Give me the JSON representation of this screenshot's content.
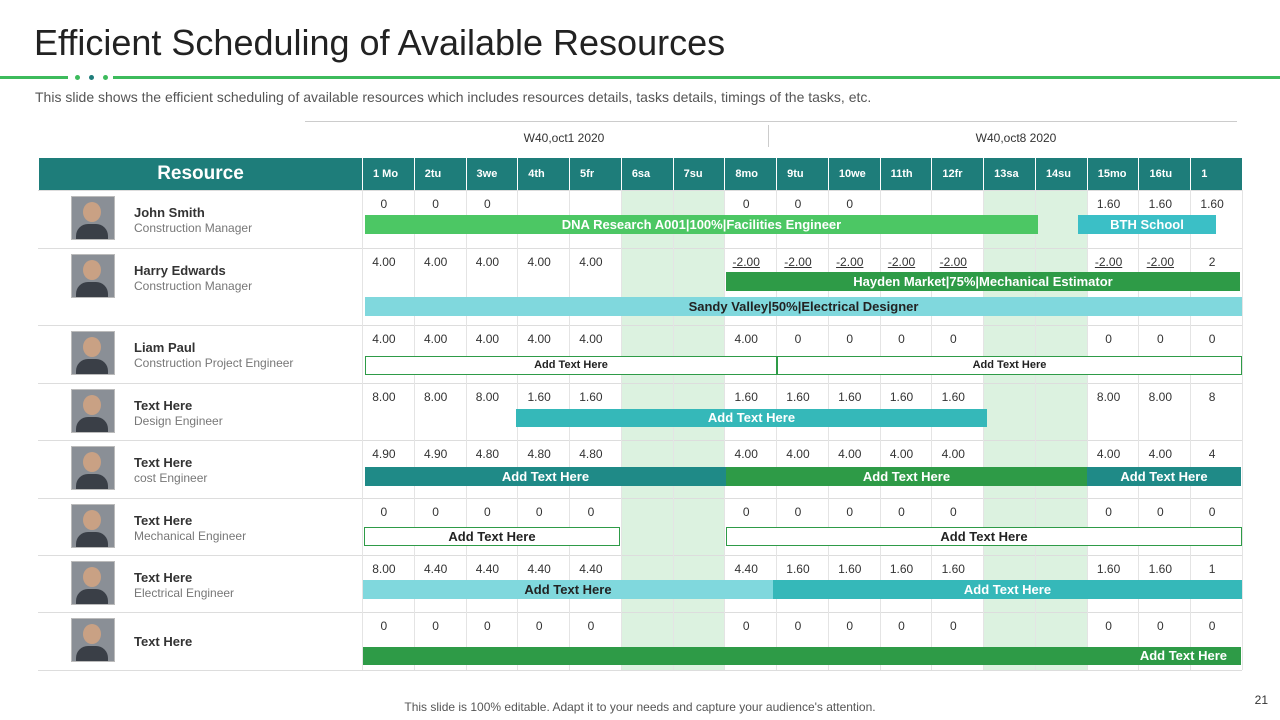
{
  "header": {
    "title": "Efficient Scheduling of Available Resources",
    "subtitle": "This slide shows the efficient scheduling of available resources which includes resources details, tasks details, timings of the tasks, etc."
  },
  "weeks": [
    "W40,oct1 2020",
    "W40,oct8 2020"
  ],
  "table": {
    "resource_header": "Resource",
    "days": [
      "1 Mo",
      "2tu",
      "3we",
      "4th",
      "5fr",
      "6sa",
      "7su",
      "8mo",
      "9tu",
      "10we",
      "11th",
      "12fr",
      "13sa",
      "14su",
      "15mo",
      "16tu",
      "1"
    ],
    "rows": [
      {
        "name": "John Smith",
        "role": "Construction Manager",
        "values": [
          "0",
          "0",
          "0",
          null,
          null,
          null,
          null,
          "0",
          "0",
          "0",
          null,
          null,
          null,
          null,
          "1.60",
          "1.60",
          "1.60"
        ],
        "bars": [
          {
            "label": "DNA  Research A001|100%|Facilities  Engineer"
          },
          {
            "label": "BTH  School"
          }
        ]
      },
      {
        "name": "Harry Edwards",
        "role": "Construction Manager",
        "values": [
          "4.00",
          "4.00",
          "4.00",
          "4.00",
          "4.00",
          null,
          null,
          "-2.00",
          "-2.00",
          "-2.00",
          "-2.00",
          "-2.00",
          null,
          null,
          "-2.00",
          "-2.00",
          "2"
        ],
        "bars": [
          {
            "label": "Hayden Market|75%|Mechanical Estimator"
          },
          {
            "label": "Sandy Valley|50%|Electrical  Designer"
          }
        ]
      },
      {
        "name": "Liam Paul",
        "role": "Construction Project Engineer",
        "values": [
          "4.00",
          "4.00",
          "4.00",
          "4.00",
          "4.00",
          null,
          null,
          "4.00",
          "0",
          "0",
          "0",
          "0",
          null,
          null,
          "0",
          "0",
          "0"
        ],
        "bars": [
          {
            "label": "Add Text Here"
          },
          {
            "label": "Add Text Here"
          }
        ]
      },
      {
        "name": "Text Here",
        "role": "Design Engineer",
        "values": [
          "8.00",
          "8.00",
          "8.00",
          "1.60",
          "1.60",
          null,
          null,
          "1.60",
          "1.60",
          "1.60",
          "1.60",
          "1.60",
          null,
          null,
          "8.00",
          "8.00",
          "8"
        ],
        "bars": [
          {
            "label": "Add Text Here"
          }
        ]
      },
      {
        "name": "Text Here",
        "role": "cost Engineer",
        "values": [
          "4.90",
          "4.90",
          "4.80",
          "4.80",
          "4.80",
          null,
          null,
          "4.00",
          "4.00",
          "4.00",
          "4.00",
          "4.00",
          null,
          null,
          "4.00",
          "4.00",
          "4"
        ],
        "bars": [
          {
            "label": "Add Text Here"
          },
          {
            "label": "Add Text Here"
          },
          {
            "label": "Add Text Here"
          }
        ]
      },
      {
        "name": "Text Here",
        "role": "Mechanical Engineer",
        "values": [
          "0",
          "0",
          "0",
          "0",
          "0",
          null,
          null,
          "0",
          "0",
          "0",
          "0",
          "0",
          null,
          null,
          "0",
          "0",
          "0"
        ],
        "bars": [
          {
            "label": "Add  Text Here"
          },
          {
            "label": "Add Text Here"
          }
        ]
      },
      {
        "name": "Text Here",
        "role": "Electrical Engineer",
        "values": [
          "8.00",
          "4.40",
          "4.40",
          "4.40",
          "4.40",
          null,
          null,
          "4.40",
          "1.60",
          "1.60",
          "1.60",
          "1.60",
          null,
          null,
          "1.60",
          "1.60",
          "1"
        ],
        "bars": [
          {
            "label": "Add Text Here"
          },
          {
            "label": "Add Text Here"
          }
        ]
      },
      {
        "name": "Text Here",
        "values": [
          "0",
          "0",
          "0",
          "0",
          "0",
          null,
          null,
          "0",
          "0",
          "0",
          "0",
          "0",
          null,
          null,
          "0",
          "0",
          "0"
        ],
        "bars": [
          {
            "label": "Add Text Here"
          }
        ]
      }
    ]
  },
  "footer": "This slide is 100% editable. Adapt it to your needs and capture your audience's attention.",
  "page_number": "21"
}
